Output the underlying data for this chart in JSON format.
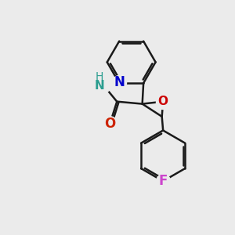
{
  "background_color": "#ebebeb",
  "bond_color": "#1a1a1a",
  "bond_width": 1.8,
  "atom_colors": {
    "N": "#0000cc",
    "O_epoxide": "#cc0000",
    "O_carbonyl": "#cc2200",
    "N_amide": "#2a9d8f",
    "F": "#cc44cc",
    "C": "#1a1a1a"
  },
  "atom_fontsizes": {
    "N": 11,
    "O": 11,
    "F": 11,
    "NH2": 10
  }
}
